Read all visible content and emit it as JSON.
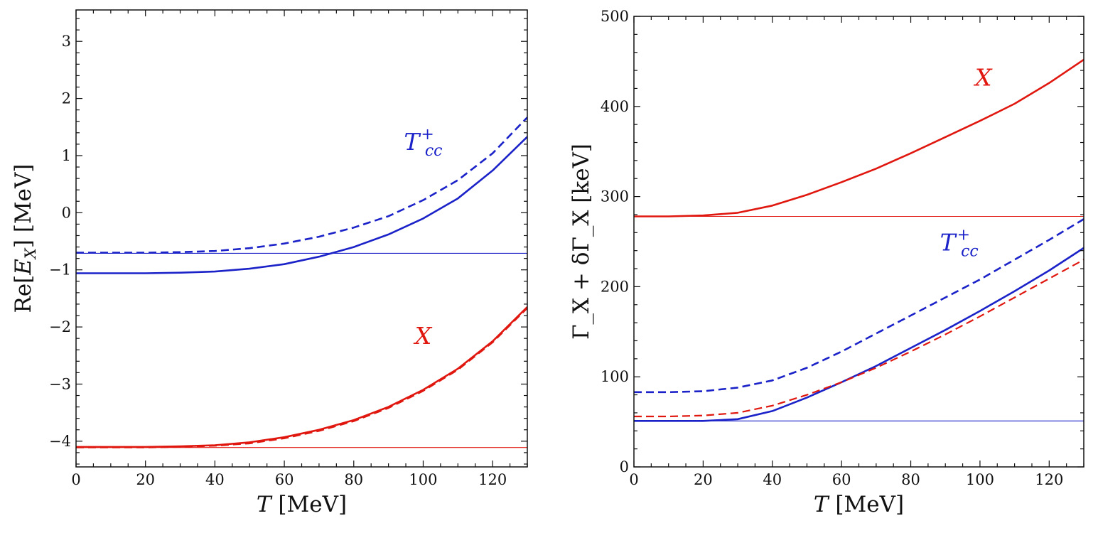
{
  "chart_data": [
    {
      "type": "line",
      "title": "",
      "xlabel_var": "T",
      "xlabel_unit": "[MeV]",
      "ylabel_pre": "Re[",
      "ylabel_var": "E",
      "ylabel_sub": "X",
      "ylabel_post": "] [MeV]",
      "xlim": [
        0,
        130
      ],
      "ylim": [
        -4.45,
        3.55
      ],
      "xticks": [
        0,
        20,
        40,
        60,
        80,
        100,
        120
      ],
      "xtick_labels": [
        "0",
        "20",
        "40",
        "60",
        "80",
        "100",
        "120"
      ],
      "yticks": [
        -4,
        -3,
        -2,
        -1,
        0,
        1,
        2,
        3
      ],
      "ytick_labels": [
        "−4",
        "−3",
        "−2",
        "−1",
        "0",
        "1",
        "2",
        "3"
      ],
      "series": [
        {
          "name": "Tcc+ solid",
          "color": "#1a22c8",
          "style": "solid",
          "width": 2.6,
          "x": [
            0,
            10,
            20,
            30,
            40,
            50,
            60,
            70,
            80,
            90,
            100,
            110,
            120,
            130
          ],
          "y": [
            -1.06,
            -1.06,
            -1.06,
            -1.05,
            -1.03,
            -0.98,
            -0.9,
            -0.77,
            -0.6,
            -0.38,
            -0.1,
            0.25,
            0.74,
            1.33
          ]
        },
        {
          "name": "Tcc+ dashed",
          "color": "#1a22c8",
          "style": "dashed",
          "width": 2.6,
          "x": [
            0,
            10,
            20,
            30,
            40,
            50,
            60,
            70,
            80,
            90,
            100,
            110,
            120,
            130
          ],
          "y": [
            -0.7,
            -0.7,
            -0.7,
            -0.69,
            -0.67,
            -0.62,
            -0.54,
            -0.42,
            -0.26,
            -0.06,
            0.22,
            0.57,
            1.04,
            1.67
          ]
        },
        {
          "name": "Tcc+ reference",
          "color": "#1a22c8",
          "style": "solid",
          "width": 1.1,
          "x": [
            0,
            130
          ],
          "y": [
            -0.71,
            -0.71
          ]
        },
        {
          "name": "X solid",
          "color": "#e0170f",
          "style": "solid",
          "width": 2.6,
          "x": [
            0,
            10,
            20,
            30,
            40,
            50,
            60,
            70,
            80,
            90,
            100,
            110,
            120,
            130
          ],
          "y": [
            -4.1,
            -4.1,
            -4.1,
            -4.09,
            -4.07,
            -4.02,
            -3.93,
            -3.8,
            -3.63,
            -3.4,
            -3.1,
            -2.73,
            -2.25,
            -1.65
          ]
        },
        {
          "name": "X dashed",
          "color": "#e0170f",
          "style": "dashed",
          "width": 2.2,
          "x": [
            0,
            10,
            20,
            30,
            40,
            50,
            60,
            70,
            80,
            90,
            100,
            110,
            120,
            130
          ],
          "y": [
            -4.11,
            -4.11,
            -4.11,
            -4.1,
            -4.08,
            -4.04,
            -3.95,
            -3.82,
            -3.65,
            -3.42,
            -3.12,
            -2.75,
            -2.27,
            -1.67
          ]
        },
        {
          "name": "X reference",
          "color": "#e0170f",
          "style": "solid",
          "width": 1.1,
          "x": [
            0,
            130
          ],
          "y": [
            -4.11,
            -4.11
          ]
        }
      ],
      "annotations": [
        {
          "main": "T",
          "sub": "cc",
          "sup": "+",
          "color": "#1a22c8",
          "x": 100,
          "y": 1.1
        },
        {
          "main": "X",
          "sub": "",
          "sup": "",
          "color": "#e0170f",
          "x": 100,
          "y": -2.3
        }
      ]
    },
    {
      "type": "line",
      "title": "",
      "xlabel_var": "T",
      "xlabel_unit": "[MeV]",
      "ylabel_text": "Γ_X + δΓ_X [keV]",
      "xlim": [
        0,
        130
      ],
      "ylim": [
        0,
        500
      ],
      "xticks": [
        0,
        20,
        40,
        60,
        80,
        100,
        120
      ],
      "xtick_labels": [
        "0",
        "20",
        "40",
        "60",
        "80",
        "100",
        "120"
      ],
      "yticks": [
        0,
        100,
        200,
        300,
        400,
        500
      ],
      "ytick_labels": [
        "0",
        "100",
        "200",
        "300",
        "400",
        "500"
      ],
      "series": [
        {
          "name": "X solid",
          "color": "#e0170f",
          "style": "solid",
          "width": 2.6,
          "x": [
            0,
            10,
            20,
            30,
            40,
            50,
            60,
            70,
            80,
            90,
            100,
            110,
            120,
            130
          ],
          "y": [
            278,
            278,
            279,
            282,
            290,
            302,
            316,
            331,
            348,
            366,
            384,
            403,
            426,
            452
          ]
        },
        {
          "name": "X reference",
          "color": "#e0170f",
          "style": "solid",
          "width": 1.1,
          "x": [
            0,
            130
          ],
          "y": [
            278,
            278
          ]
        },
        {
          "name": "Tcc+ dashed",
          "color": "#1a22c8",
          "style": "dashed",
          "width": 2.6,
          "x": [
            0,
            10,
            20,
            30,
            40,
            50,
            60,
            70,
            80,
            90,
            100,
            110,
            120,
            130
          ],
          "y": [
            83,
            83,
            84,
            88,
            96,
            110,
            128,
            148,
            168,
            188,
            208,
            230,
            252,
            275
          ]
        },
        {
          "name": "Tcc+ solid",
          "color": "#1a22c8",
          "style": "solid",
          "width": 2.6,
          "x": [
            0,
            10,
            20,
            30,
            40,
            50,
            60,
            70,
            80,
            90,
            100,
            110,
            120,
            130
          ],
          "y": [
            51,
            51,
            51,
            53,
            62,
            77,
            94,
            112,
            132,
            152,
            173,
            195,
            218,
            243
          ]
        },
        {
          "name": "X dashed",
          "color": "#e0170f",
          "style": "dashed",
          "width": 2.2,
          "x": [
            0,
            10,
            20,
            30,
            40,
            50,
            60,
            70,
            80,
            90,
            100,
            110,
            120,
            130
          ],
          "y": [
            56,
            56,
            57,
            60,
            68,
            80,
            94,
            110,
            128,
            147,
            167,
            188,
            209,
            230
          ]
        },
        {
          "name": "Tcc+ reference",
          "color": "#1a22c8",
          "style": "solid",
          "width": 1.1,
          "x": [
            0,
            130
          ],
          "y": [
            51,
            51
          ]
        }
      ],
      "annotations": [
        {
          "main": "X",
          "sub": "",
          "sup": "",
          "color": "#e0170f",
          "x": 101,
          "y": 423
        },
        {
          "main": "T",
          "sub": "cc",
          "sup": "+",
          "color": "#1a22c8",
          "x": 94,
          "y": 240
        }
      ]
    }
  ]
}
